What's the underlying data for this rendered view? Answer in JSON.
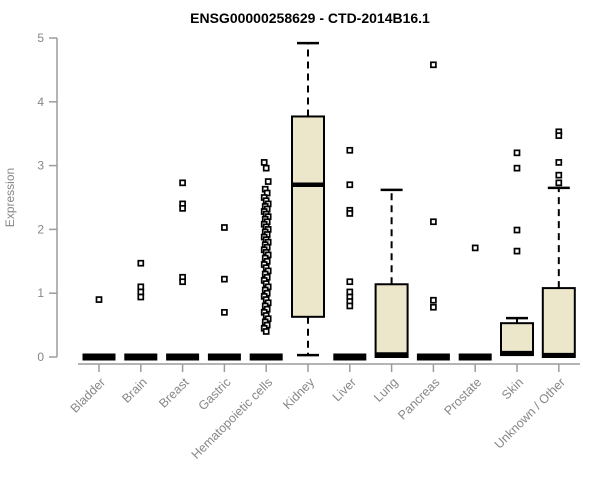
{
  "chart_data": {
    "type": "boxplot",
    "title": "ENSG00000258629 - CTD-2014B16.1",
    "ylabel": "Expression",
    "xlabel": "",
    "ylim": [
      0,
      5
    ],
    "yticks": [
      0,
      1,
      2,
      3,
      4,
      5
    ],
    "grid": false,
    "legend": "none",
    "categories": [
      "Bladder",
      "Brain",
      "Breast",
      "Gastric",
      "Hematopoietic cells",
      "Kidney",
      "Liver",
      "Lung",
      "Pancreas",
      "Prostate",
      "Skin",
      "Unknown / Other"
    ],
    "boxes": [
      {
        "category": "Bladder",
        "low": 0,
        "q1": 0,
        "median": 0,
        "q3": 0,
        "high": 0,
        "outliers": [
          0.9
        ]
      },
      {
        "category": "Brain",
        "low": 0,
        "q1": 0,
        "median": 0,
        "q3": 0,
        "high": 0,
        "outliers": [
          1.47,
          1.1,
          1.02,
          0.94
        ]
      },
      {
        "category": "Breast",
        "low": 0,
        "q1": 0,
        "median": 0,
        "q3": 0,
        "high": 0,
        "outliers": [
          2.73,
          2.4,
          2.33,
          1.25,
          1.18
        ]
      },
      {
        "category": "Gastric",
        "low": 0,
        "q1": 0,
        "median": 0,
        "q3": 0,
        "high": 0,
        "outliers": [
          2.03,
          1.22,
          0.7
        ]
      },
      {
        "category": "Hematopoietic cells",
        "low": 0,
        "q1": 0,
        "median": 0,
        "q3": 0,
        "high": 0,
        "outliers": [
          3.05,
          2.96,
          2.75,
          2.63,
          2.57,
          2.5,
          2.45,
          2.4,
          2.36,
          2.32,
          2.28,
          2.24,
          2.2,
          2.16,
          2.12,
          2.08,
          2.04,
          2.0,
          1.96,
          1.92,
          1.88,
          1.84,
          1.8,
          1.76,
          1.72,
          1.68,
          1.64,
          1.6,
          1.55,
          1.5,
          1.45,
          1.4,
          1.35,
          1.3,
          1.25,
          1.2,
          1.15,
          1.1,
          1.05,
          1.0,
          0.95,
          0.9,
          0.85,
          0.8,
          0.75,
          0.7,
          0.65,
          0.6,
          0.55,
          0.5,
          0.45,
          0.4
        ]
      },
      {
        "category": "Kidney",
        "low": 0.03,
        "q1": 0.63,
        "median": 2.7,
        "q3": 3.77,
        "high": 4.92,
        "outliers": []
      },
      {
        "category": "Liver",
        "low": 0,
        "q1": 0,
        "median": 0,
        "q3": 0,
        "high": 0,
        "outliers": [
          3.24,
          2.7,
          2.3,
          2.25,
          1.18,
          1.02,
          0.94,
          0.87,
          0.8
        ]
      },
      {
        "category": "Lung",
        "low": 0,
        "q1": 0,
        "median": 0.04,
        "q3": 1.14,
        "high": 2.62,
        "outliers": []
      },
      {
        "category": "Pancreas",
        "low": 0,
        "q1": 0,
        "median": 0,
        "q3": 0,
        "high": 0,
        "outliers": [
          4.58,
          2.12,
          0.89,
          0.78
        ]
      },
      {
        "category": "Prostate",
        "low": 0,
        "q1": 0,
        "median": 0,
        "q3": 0,
        "high": 0,
        "outliers": [
          1.71
        ]
      },
      {
        "category": "Skin",
        "low": 0.02,
        "q1": 0.03,
        "median": 0.06,
        "q3": 0.53,
        "high": 0.61,
        "outliers": [
          3.2,
          2.96,
          1.99,
          1.66
        ]
      },
      {
        "category": "Unknown / Other",
        "low": 0,
        "q1": 0,
        "median": 0.03,
        "q3": 1.08,
        "high": 2.65,
        "outliers": [
          3.53,
          3.47,
          3.05,
          2.85,
          2.73
        ]
      }
    ],
    "colors": {
      "box_fill": "#ece7cb",
      "box_border": "#000000",
      "median": "#000000",
      "whisker": "#000000",
      "outlier_stroke": "#000000",
      "outlier_fill": "#ffffff",
      "axis_line": "#9c9c9c",
      "axis_text": "#878787",
      "title_text": "#000000",
      "background": "#ffffff"
    }
  }
}
